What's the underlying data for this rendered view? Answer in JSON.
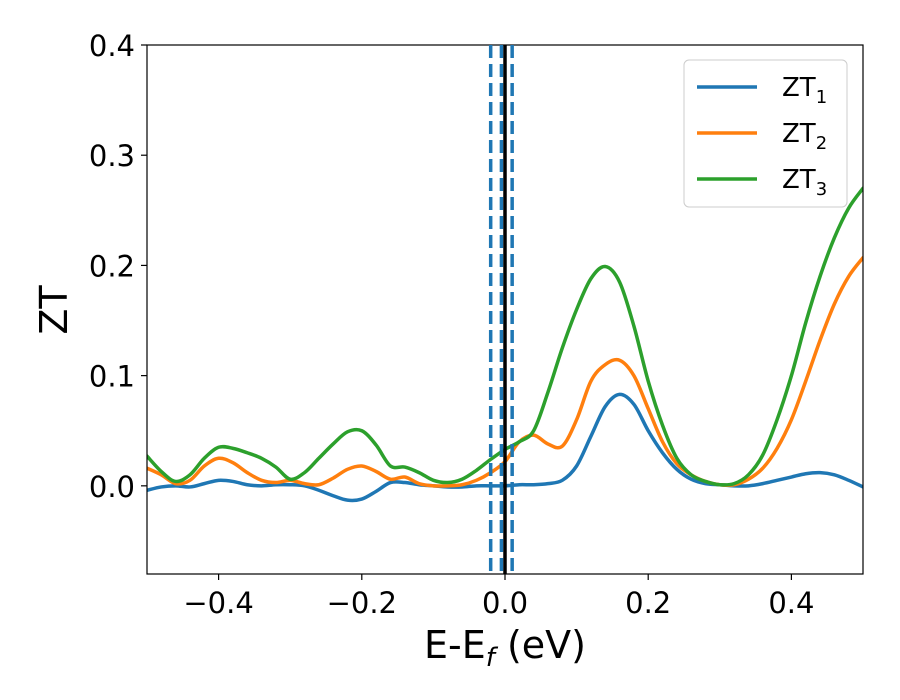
{
  "chart_data": {
    "type": "line",
    "title": "",
    "xlabel": "E-E",
    "xlabel_sub": "f",
    "xlabel_unit": " (eV)",
    "ylabel": "ZT",
    "xlim": [
      -0.5,
      0.5
    ],
    "ylim": [
      -0.08,
      0.4
    ],
    "xticks": [
      -0.4,
      -0.2,
      0.0,
      0.2,
      0.4
    ],
    "xtick_labels": [
      "−0.4",
      "−0.2",
      "0.0",
      "0.2",
      "0.4"
    ],
    "yticks": [
      0.0,
      0.1,
      0.2,
      0.3,
      0.4
    ],
    "ytick_labels": [
      "0.0",
      "0.1",
      "0.2",
      "0.3",
      "0.4"
    ],
    "grid": false,
    "legend_position": "top-right",
    "vlines": [
      {
        "x": 0.0,
        "style": "solid",
        "color": "#000000"
      },
      {
        "x": -0.02,
        "style": "dashed",
        "color": "#1f77b4"
      },
      {
        "x": -0.005,
        "style": "dashed",
        "color": "#1f77b4"
      },
      {
        "x": 0.01,
        "style": "dashed",
        "color": "#1f77b4"
      }
    ],
    "series": [
      {
        "name": "ZT",
        "sub": "1",
        "color": "#1f77b4",
        "x": [
          -0.5,
          -0.48,
          -0.46,
          -0.44,
          -0.42,
          -0.4,
          -0.38,
          -0.36,
          -0.34,
          -0.32,
          -0.3,
          -0.28,
          -0.26,
          -0.24,
          -0.22,
          -0.2,
          -0.18,
          -0.16,
          -0.14,
          -0.12,
          -0.1,
          -0.08,
          -0.06,
          -0.04,
          -0.02,
          0.0,
          0.02,
          0.04,
          0.06,
          0.08,
          0.1,
          0.12,
          0.14,
          0.16,
          0.18,
          0.2,
          0.22,
          0.24,
          0.26,
          0.28,
          0.3,
          0.32,
          0.34,
          0.36,
          0.38,
          0.4,
          0.42,
          0.44,
          0.46,
          0.48,
          0.5
        ],
        "y": [
          -0.004,
          -0.001,
          0.0,
          -0.001,
          0.002,
          0.005,
          0.004,
          0.001,
          0.0,
          0.001,
          0.001,
          0.0,
          -0.004,
          -0.009,
          -0.013,
          -0.012,
          -0.005,
          0.003,
          0.003,
          0.001,
          0.0,
          -0.001,
          -0.001,
          0.0,
          0.0,
          0.0,
          0.001,
          0.001,
          0.002,
          0.005,
          0.018,
          0.045,
          0.072,
          0.083,
          0.074,
          0.05,
          0.03,
          0.015,
          0.006,
          0.002,
          0.001,
          0.0,
          0.0,
          0.002,
          0.005,
          0.008,
          0.011,
          0.012,
          0.01,
          0.005,
          -0.001
        ]
      },
      {
        "name": "ZT",
        "sub": "2",
        "color": "#ff7f0e",
        "x": [
          -0.5,
          -0.48,
          -0.46,
          -0.44,
          -0.42,
          -0.4,
          -0.38,
          -0.36,
          -0.34,
          -0.32,
          -0.3,
          -0.28,
          -0.26,
          -0.24,
          -0.22,
          -0.2,
          -0.18,
          -0.16,
          -0.14,
          -0.12,
          -0.1,
          -0.08,
          -0.06,
          -0.04,
          -0.02,
          0.0,
          0.02,
          0.04,
          0.06,
          0.08,
          0.1,
          0.12,
          0.14,
          0.16,
          0.18,
          0.2,
          0.22,
          0.24,
          0.26,
          0.28,
          0.3,
          0.32,
          0.34,
          0.36,
          0.38,
          0.4,
          0.42,
          0.44,
          0.46,
          0.48,
          0.5
        ],
        "y": [
          0.016,
          0.01,
          0.002,
          0.005,
          0.018,
          0.025,
          0.021,
          0.012,
          0.005,
          0.003,
          0.005,
          0.002,
          0.001,
          0.007,
          0.015,
          0.018,
          0.013,
          0.006,
          0.008,
          0.002,
          0.0,
          0.0,
          0.001,
          0.005,
          0.012,
          0.022,
          0.04,
          0.046,
          0.038,
          0.036,
          0.06,
          0.095,
          0.11,
          0.114,
          0.1,
          0.07,
          0.04,
          0.02,
          0.01,
          0.004,
          0.001,
          0.001,
          0.006,
          0.016,
          0.034,
          0.06,
          0.095,
          0.132,
          0.165,
          0.19,
          0.207
        ]
      },
      {
        "name": "ZT",
        "sub": "3",
        "color": "#2ca02c",
        "x": [
          -0.5,
          -0.48,
          -0.46,
          -0.44,
          -0.42,
          -0.4,
          -0.38,
          -0.36,
          -0.34,
          -0.32,
          -0.3,
          -0.28,
          -0.26,
          -0.24,
          -0.22,
          -0.2,
          -0.18,
          -0.16,
          -0.14,
          -0.12,
          -0.1,
          -0.08,
          -0.06,
          -0.04,
          -0.02,
          0.0,
          0.02,
          0.04,
          0.06,
          0.08,
          0.1,
          0.12,
          0.14,
          0.16,
          0.18,
          0.2,
          0.22,
          0.24,
          0.26,
          0.28,
          0.3,
          0.32,
          0.34,
          0.36,
          0.38,
          0.4,
          0.42,
          0.44,
          0.46,
          0.48,
          0.5
        ],
        "y": [
          0.027,
          0.013,
          0.004,
          0.01,
          0.025,
          0.035,
          0.034,
          0.03,
          0.025,
          0.017,
          0.006,
          0.012,
          0.025,
          0.038,
          0.049,
          0.05,
          0.037,
          0.018,
          0.017,
          0.012,
          0.005,
          0.003,
          0.006,
          0.014,
          0.024,
          0.033,
          0.04,
          0.05,
          0.085,
          0.125,
          0.16,
          0.188,
          0.199,
          0.185,
          0.145,
          0.095,
          0.055,
          0.025,
          0.01,
          0.004,
          0.001,
          0.002,
          0.01,
          0.028,
          0.06,
          0.1,
          0.148,
          0.19,
          0.225,
          0.252,
          0.27
        ]
      }
    ]
  }
}
